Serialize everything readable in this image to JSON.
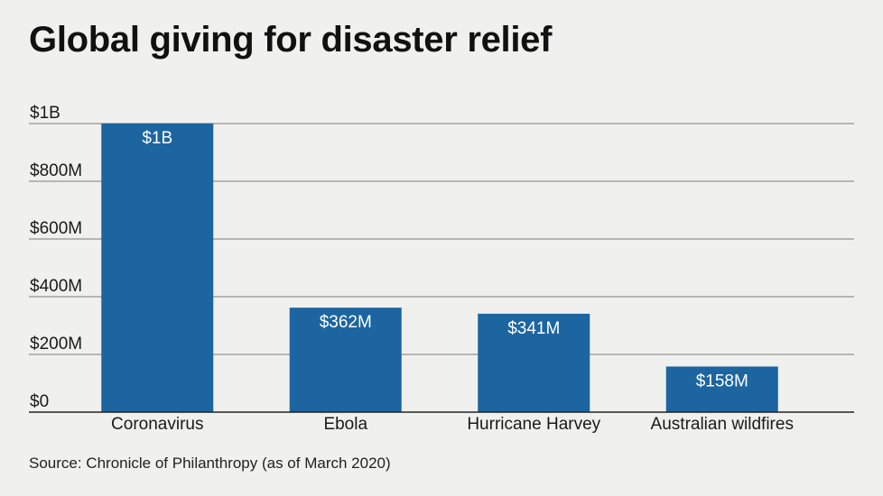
{
  "title": "Global giving for disaster relief",
  "source": "Source: Chronicle of Philanthropy (as of March 2020)",
  "colors": {
    "bar": "#1c65a0",
    "bar_label": "#ffffff",
    "grid": "#7a7a7a",
    "axis": "#222222",
    "text": "#1a1a1a",
    "background": "#f0f0ef"
  },
  "chart_data": {
    "type": "bar",
    "categories": [
      "Coronavirus",
      "Ebola",
      "Hurricane Harvey",
      "Australian wildfires"
    ],
    "values": [
      1000,
      362,
      341,
      158
    ],
    "value_unit": "millions USD",
    "data_labels": [
      "$1B",
      "$362M",
      "$341M",
      "$158M"
    ],
    "ylim": [
      0,
      1000
    ],
    "yticks": [
      0,
      200,
      400,
      600,
      800,
      1000
    ],
    "ytick_labels": [
      "$0",
      "$200M",
      "$400M",
      "$600M",
      "$800M",
      "$1B"
    ],
    "grid": true,
    "legend": "none",
    "title": "Global giving for disaster relief",
    "xlabel": "",
    "ylabel": ""
  }
}
